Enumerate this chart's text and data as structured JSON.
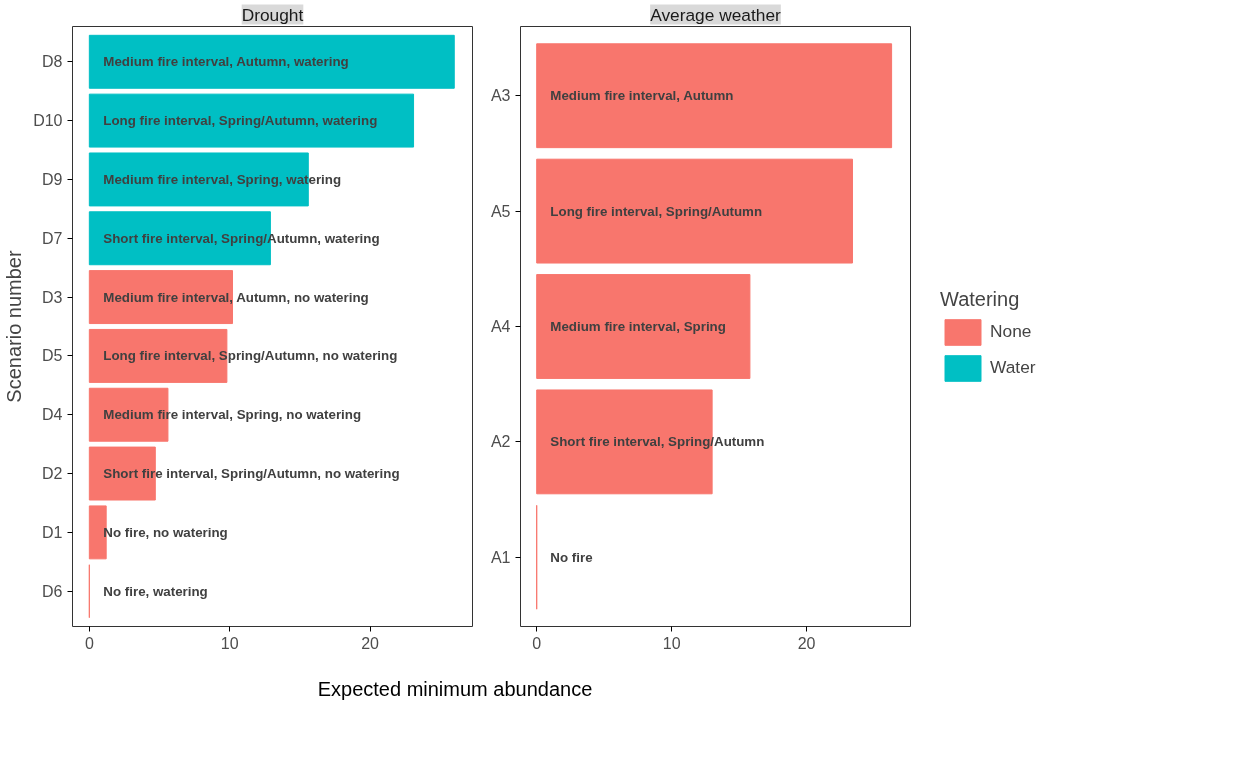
{
  "chart_data": [
    {
      "type": "bar",
      "orientation": "horizontal",
      "title": "Drought",
      "ylabel": "Scenario number",
      "xlabel": "Expected minimum abundance",
      "categories": [
        "D8",
        "D10",
        "D9",
        "D7",
        "D3",
        "D5",
        "D4",
        "D2",
        "D1",
        "D6"
      ],
      "series": [
        {
          "color": "#f8766d",
          "values": [
            null,
            null,
            null,
            null,
            10.2,
            9.8,
            5.6,
            4.7,
            1.2,
            0
          ],
          "value_labels": [
            null,
            null,
            null,
            null,
            "Medium fire interval, Autumn, no watering",
            "Long fire interval, Spring/Autumn, no watering",
            "Medium fire interval, Spring, no watering",
            "Short fire interval, Spring/Autumn, no watering",
            "No fire, no watering",
            "No fire, watering"
          ]
        },
        {
          "color": "#00bfc4",
          "values": [
            26.0,
            23.1,
            15.6,
            12.9,
            null,
            null,
            null,
            null,
            null,
            null
          ],
          "value_labels": [
            "Medium fire interval, Autumn, watering",
            "Long fire interval, Spring/Autumn, watering",
            "Medium fire interval, Spring, watering",
            "Short fire interval, Spring/Autumn, watering",
            null,
            null,
            null,
            null,
            null,
            null
          ]
        }
      ],
      "xlim": [
        -1.2,
        27.3
      ],
      "xticks": [
        0,
        10,
        20
      ],
      "grid": false
    },
    {
      "type": "bar",
      "orientation": "horizontal",
      "title": "Average weather",
      "legend": "right",
      "legend_title": "Watering",
      "categories": [
        "A3",
        "A5",
        "A4",
        "A2",
        "A1"
      ],
      "series": [
        {
          "name": "None",
          "color": "#f8766d",
          "values": [
            26.3,
            23.4,
            15.8,
            13.0,
            0
          ],
          "value_labels": [
            "Medium fire interval, Autumn",
            "Long fire interval, Spring/Autumn",
            "Medium fire interval, Spring",
            "Short fire interval, Spring/Autumn",
            "No fire"
          ]
        },
        {
          "name": "Water",
          "color": "#00bfc4",
          "values": [
            null,
            null,
            null,
            null,
            null
          ]
        }
      ],
      "xlim": [
        -1.2,
        27.7
      ],
      "xticks": [
        0,
        10,
        20
      ],
      "grid": false
    }
  ]
}
